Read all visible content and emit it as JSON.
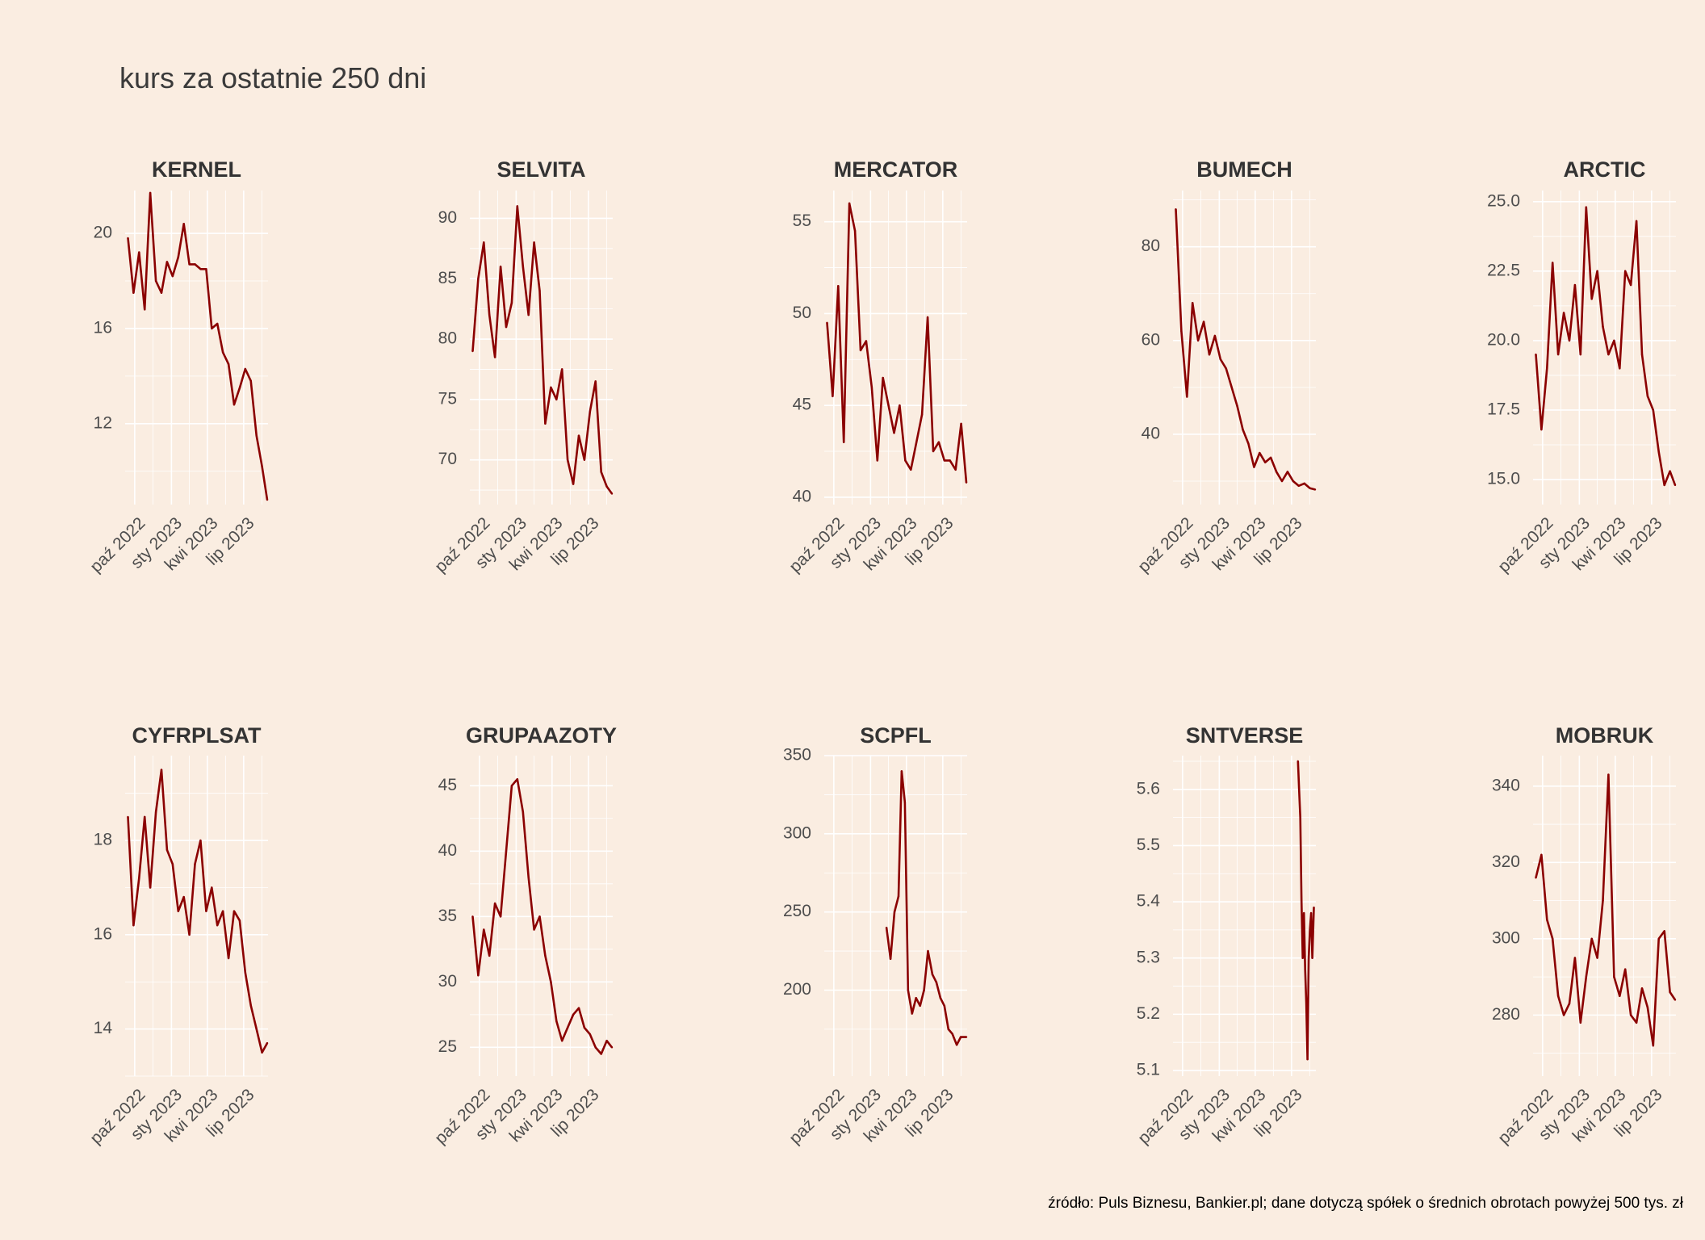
{
  "title": "kurs za ostatnie 250 dni",
  "source": "źródło: Puls Biznesu, Bankier.pl; dane dotyczą spółek o średnich obrotach powyżej 500 tys. zł",
  "line_color": "#8B0000",
  "background_color": "#FAEDE1",
  "chart_data": [
    {
      "type": "line",
      "title": "KERNEL",
      "xticks": [
        "paź 2022",
        "sty 2023",
        "kwi 2023",
        "lip 2023"
      ],
      "xlim": [
        "2022-09-07",
        "2023-08-31"
      ],
      "ylim": [
        8.6,
        21.8
      ],
      "yticks": [
        12,
        16,
        20
      ],
      "yticklabels": [
        "12",
        "16",
        "20"
      ],
      "x": [
        "2022-09-14",
        "2022-09-28",
        "2022-10-12",
        "2022-10-26",
        "2022-11-09",
        "2022-11-23",
        "2022-12-07",
        "2022-12-21",
        "2023-01-04",
        "2023-01-18",
        "2023-02-01",
        "2023-02-15",
        "2023-03-01",
        "2023-03-15",
        "2023-03-29",
        "2023-04-12",
        "2023-04-26",
        "2023-05-10",
        "2023-05-24",
        "2023-06-07",
        "2023-06-21",
        "2023-07-05",
        "2023-07-19",
        "2023-08-02",
        "2023-08-16",
        "2023-08-29"
      ],
      "y": [
        19.8,
        17.5,
        19.2,
        16.8,
        21.7,
        18.0,
        17.5,
        18.8,
        18.2,
        19.0,
        20.4,
        18.7,
        18.7,
        18.5,
        18.5,
        16.0,
        16.2,
        15.0,
        14.5,
        12.8,
        13.5,
        14.3,
        13.8,
        11.5,
        10.2,
        8.8
      ]
    },
    {
      "type": "line",
      "title": "SELVITA",
      "xticks": [
        "paź 2022",
        "sty 2023",
        "kwi 2023",
        "lip 2023"
      ],
      "xlim": [
        "2022-09-07",
        "2023-08-31"
      ],
      "ylim": [
        66.3,
        92.3
      ],
      "yticks": [
        70,
        75,
        80,
        85,
        90
      ],
      "yticklabels": [
        "70",
        "75",
        "80",
        "85",
        "90"
      ],
      "x": [
        "2022-09-14",
        "2022-09-28",
        "2022-10-12",
        "2022-10-26",
        "2022-11-09",
        "2022-11-23",
        "2022-12-07",
        "2022-12-21",
        "2023-01-04",
        "2023-01-18",
        "2023-02-01",
        "2023-02-15",
        "2023-03-01",
        "2023-03-15",
        "2023-03-29",
        "2023-04-12",
        "2023-04-26",
        "2023-05-10",
        "2023-05-24",
        "2023-06-07",
        "2023-06-21",
        "2023-07-05",
        "2023-07-19",
        "2023-08-02",
        "2023-08-16",
        "2023-08-29"
      ],
      "y": [
        79.0,
        85.0,
        88.0,
        82.0,
        78.5,
        86.0,
        81.0,
        83.0,
        91.0,
        86.0,
        82.0,
        88.0,
        84.0,
        73.0,
        76.0,
        75.0,
        77.5,
        70.0,
        68.0,
        72.0,
        70.0,
        74.0,
        76.5,
        69.0,
        67.8,
        67.2
      ]
    },
    {
      "type": "line",
      "title": "MERCATOR",
      "xticks": [
        "paź 2022",
        "sty 2023",
        "kwi 2023",
        "lip 2023"
      ],
      "xlim": [
        "2022-09-07",
        "2023-08-31"
      ],
      "ylim": [
        39.6,
        56.7
      ],
      "yticks": [
        40,
        45,
        50,
        55
      ],
      "yticklabels": [
        "40",
        "45",
        "50",
        "55"
      ],
      "x": [
        "2022-09-14",
        "2022-09-28",
        "2022-10-12",
        "2022-10-26",
        "2022-11-09",
        "2022-11-23",
        "2022-12-07",
        "2022-12-21",
        "2023-01-04",
        "2023-01-18",
        "2023-02-01",
        "2023-02-15",
        "2023-03-01",
        "2023-03-15",
        "2023-03-29",
        "2023-04-12",
        "2023-04-26",
        "2023-05-10",
        "2023-05-24",
        "2023-06-07",
        "2023-06-21",
        "2023-07-05",
        "2023-07-19",
        "2023-08-02",
        "2023-08-16",
        "2023-08-29"
      ],
      "y": [
        49.5,
        45.5,
        51.5,
        43.0,
        56.0,
        54.5,
        48.0,
        48.5,
        46.0,
        42.0,
        46.5,
        45.0,
        43.5,
        45.0,
        42.0,
        41.5,
        43.0,
        44.5,
        49.8,
        42.5,
        43.0,
        42.0,
        42.0,
        41.5,
        44.0,
        40.8
      ]
    },
    {
      "type": "line",
      "title": "BUMECH",
      "xticks": [
        "paź 2022",
        "sty 2023",
        "kwi 2023",
        "lip 2023"
      ],
      "xlim": [
        "2022-09-07",
        "2023-08-31"
      ],
      "ylim": [
        25.0,
        92.0
      ],
      "yticks": [
        40,
        60,
        80
      ],
      "yticklabels": [
        "40",
        "60",
        "80"
      ],
      "x": [
        "2022-09-14",
        "2022-09-28",
        "2022-10-12",
        "2022-10-26",
        "2022-11-09",
        "2022-11-23",
        "2022-12-07",
        "2022-12-21",
        "2023-01-04",
        "2023-01-18",
        "2023-02-01",
        "2023-02-15",
        "2023-03-01",
        "2023-03-15",
        "2023-03-29",
        "2023-04-12",
        "2023-04-26",
        "2023-05-10",
        "2023-05-24",
        "2023-06-07",
        "2023-06-21",
        "2023-07-05",
        "2023-07-19",
        "2023-08-02",
        "2023-08-16",
        "2023-08-29"
      ],
      "y": [
        88.0,
        62.0,
        48.0,
        68.0,
        60.0,
        64.0,
        57.0,
        61.0,
        56.0,
        54.0,
        50.0,
        46.0,
        41.0,
        38.0,
        33.0,
        36.0,
        34.0,
        35.0,
        32.0,
        30.0,
        32.0,
        30.0,
        29.0,
        29.5,
        28.5,
        28.2
      ]
    },
    {
      "type": "line",
      "title": "ARCTIC",
      "xticks": [
        "paź 2022",
        "sty 2023",
        "kwi 2023",
        "lip 2023"
      ],
      "xlim": [
        "2022-09-07",
        "2023-08-31"
      ],
      "ylim": [
        14.1,
        25.4
      ],
      "yticks": [
        15.0,
        17.5,
        20.0,
        22.5,
        25.0
      ],
      "yticklabels": [
        "15.0",
        "17.5",
        "20.0",
        "22.5",
        "25.0"
      ],
      "x": [
        "2022-09-14",
        "2022-09-28",
        "2022-10-12",
        "2022-10-26",
        "2022-11-09",
        "2022-11-23",
        "2022-12-07",
        "2022-12-21",
        "2023-01-04",
        "2023-01-18",
        "2023-02-01",
        "2023-02-15",
        "2023-03-01",
        "2023-03-15",
        "2023-03-29",
        "2023-04-12",
        "2023-04-26",
        "2023-05-10",
        "2023-05-24",
        "2023-06-07",
        "2023-06-21",
        "2023-07-05",
        "2023-07-19",
        "2023-08-02",
        "2023-08-16",
        "2023-08-29"
      ],
      "y": [
        19.5,
        16.8,
        19.0,
        22.8,
        19.5,
        21.0,
        20.0,
        22.0,
        19.5,
        24.8,
        21.5,
        22.5,
        20.5,
        19.5,
        20.0,
        19.0,
        22.5,
        22.0,
        24.3,
        19.5,
        18.0,
        17.5,
        16.0,
        14.8,
        15.3,
        14.8
      ]
    },
    {
      "type": "line",
      "title": "CYFRPLSAT",
      "xticks": [
        "paź 2022",
        "sty 2023",
        "kwi 2023",
        "lip 2023"
      ],
      "xlim": [
        "2022-09-07",
        "2023-08-31"
      ],
      "ylim": [
        13.0,
        19.8
      ],
      "yticks": [
        14,
        16,
        18
      ],
      "yticklabels": [
        "14",
        "16",
        "18"
      ],
      "x": [
        "2022-09-14",
        "2022-09-28",
        "2022-10-12",
        "2022-10-26",
        "2022-11-09",
        "2022-11-23",
        "2022-12-07",
        "2022-12-21",
        "2023-01-04",
        "2023-01-18",
        "2023-02-01",
        "2023-02-15",
        "2023-03-01",
        "2023-03-15",
        "2023-03-29",
        "2023-04-12",
        "2023-04-26",
        "2023-05-10",
        "2023-05-24",
        "2023-06-07",
        "2023-06-21",
        "2023-07-05",
        "2023-07-19",
        "2023-08-02",
        "2023-08-16",
        "2023-08-29"
      ],
      "y": [
        18.5,
        16.2,
        17.2,
        18.5,
        17.0,
        18.6,
        19.5,
        17.8,
        17.5,
        16.5,
        16.8,
        16.0,
        17.5,
        18.0,
        16.5,
        17.0,
        16.2,
        16.5,
        15.5,
        16.5,
        16.3,
        15.2,
        14.5,
        14.0,
        13.5,
        13.7
      ]
    },
    {
      "type": "line",
      "title": "GRUPAAZOTY",
      "xticks": [
        "paź 2022",
        "sty 2023",
        "kwi 2023",
        "lip 2023"
      ],
      "xlim": [
        "2022-09-07",
        "2023-08-31"
      ],
      "ylim": [
        22.8,
        47.3
      ],
      "yticks": [
        25,
        30,
        35,
        40,
        45
      ],
      "yticklabels": [
        "25",
        "30",
        "35",
        "40",
        "45"
      ],
      "x": [
        "2022-09-14",
        "2022-09-28",
        "2022-10-12",
        "2022-10-26",
        "2022-11-09",
        "2022-11-23",
        "2022-12-07",
        "2022-12-21",
        "2023-01-04",
        "2023-01-18",
        "2023-02-01",
        "2023-02-15",
        "2023-03-01",
        "2023-03-15",
        "2023-03-29",
        "2023-04-12",
        "2023-04-26",
        "2023-05-10",
        "2023-05-24",
        "2023-06-07",
        "2023-06-21",
        "2023-07-05",
        "2023-07-19",
        "2023-08-02",
        "2023-08-16",
        "2023-08-29"
      ],
      "y": [
        35.0,
        30.5,
        34.0,
        32.0,
        36.0,
        35.0,
        40.0,
        45.0,
        45.5,
        43.0,
        38.0,
        34.0,
        35.0,
        32.0,
        30.0,
        27.0,
        25.5,
        26.5,
        27.5,
        28.0,
        26.5,
        26.0,
        25.0,
        24.5,
        25.5,
        25.0
      ]
    },
    {
      "type": "line",
      "title": "SCPFL",
      "xticks": [
        "paź 2022",
        "sty 2023",
        "kwi 2023",
        "lip 2023"
      ],
      "xlim": [
        "2022-09-07",
        "2023-08-31"
      ],
      "ylim": [
        145,
        350
      ],
      "yticks": [
        200,
        250,
        300,
        350
      ],
      "yticklabels": [
        "200",
        "250",
        "300",
        "350"
      ],
      "x": [
        "2023-02-10",
        "2023-02-20",
        "2023-03-02",
        "2023-03-12",
        "2023-03-20",
        "2023-03-28",
        "2023-04-05",
        "2023-04-15",
        "2023-04-25",
        "2023-05-05",
        "2023-05-15",
        "2023-05-25",
        "2023-06-05",
        "2023-06-15",
        "2023-06-25",
        "2023-07-05",
        "2023-07-15",
        "2023-07-25",
        "2023-08-05",
        "2023-08-15",
        "2023-08-29"
      ],
      "y": [
        240,
        220,
        250,
        260,
        340,
        320,
        200,
        185,
        195,
        190,
        200,
        225,
        210,
        205,
        195,
        190,
        175,
        172,
        165,
        170,
        170
      ]
    },
    {
      "type": "line",
      "title": "SNTVERSE",
      "xticks": [
        "paź 2022",
        "sty 2023",
        "kwi 2023",
        "lip 2023"
      ],
      "xlim": [
        "2022-09-07",
        "2023-08-31"
      ],
      "ylim": [
        5.09,
        5.66
      ],
      "yticks": [
        5.1,
        5.2,
        5.3,
        5.4,
        5.5,
        5.6
      ],
      "yticklabels": [
        "5.1",
        "5.2",
        "5.3",
        "5.4",
        "5.5",
        "5.6"
      ],
      "x": [
        "2023-07-17",
        "2023-07-20",
        "2023-07-23",
        "2023-07-26",
        "2023-07-29",
        "2023-08-01",
        "2023-08-04",
        "2023-08-07",
        "2023-08-10",
        "2023-08-13",
        "2023-08-16",
        "2023-08-19",
        "2023-08-22",
        "2023-08-26"
      ],
      "y": [
        5.65,
        5.6,
        5.55,
        5.4,
        5.3,
        5.38,
        5.28,
        5.22,
        5.12,
        5.3,
        5.35,
        5.38,
        5.3,
        5.39
      ]
    },
    {
      "type": "line",
      "title": "MOBRUK",
      "xticks": [
        "paź 2022",
        "sty 2023",
        "kwi 2023",
        "lip 2023"
      ],
      "xlim": [
        "2022-09-07",
        "2023-08-31"
      ],
      "ylim": [
        264,
        348
      ],
      "yticks": [
        280,
        300,
        320,
        340
      ],
      "yticklabels": [
        "280",
        "300",
        "320",
        "340"
      ],
      "x": [
        "2022-09-14",
        "2022-09-28",
        "2022-10-12",
        "2022-10-26",
        "2022-11-09",
        "2022-11-23",
        "2022-12-07",
        "2022-12-21",
        "2023-01-04",
        "2023-01-18",
        "2023-02-01",
        "2023-02-15",
        "2023-03-01",
        "2023-03-15",
        "2023-03-29",
        "2023-04-12",
        "2023-04-26",
        "2023-05-10",
        "2023-05-24",
        "2023-06-07",
        "2023-06-21",
        "2023-07-05",
        "2023-07-19",
        "2023-08-02",
        "2023-08-16",
        "2023-08-29"
      ],
      "y": [
        316,
        322,
        305,
        300,
        285,
        280,
        283,
        295,
        278,
        290,
        300,
        295,
        310,
        343,
        290,
        285,
        292,
        280,
        278,
        287,
        282,
        272,
        300,
        302,
        286,
        284
      ]
    }
  ]
}
